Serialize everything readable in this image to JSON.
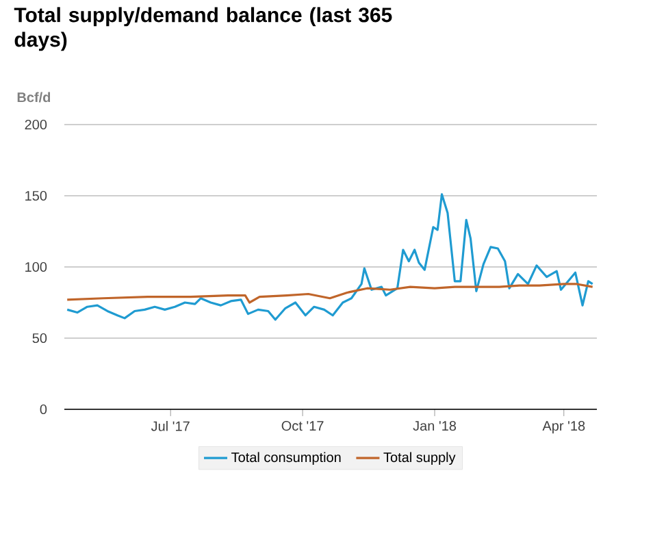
{
  "chart_data": {
    "type": "line",
    "title": "Total supply/demand balance (last 365 days)",
    "ylabel": "Bcf/d",
    "x": [
      "2017-04-20",
      "2017-04-27",
      "2017-05-04",
      "2017-05-11",
      "2017-05-18",
      "2017-05-25",
      "2017-05-30",
      "2017-06-06",
      "2017-06-13",
      "2017-06-20",
      "2017-06-27",
      "2017-07-04",
      "2017-07-11",
      "2017-07-18",
      "2017-07-22",
      "2017-07-29",
      "2017-08-05",
      "2017-08-12",
      "2017-08-19",
      "2017-08-24",
      "2017-08-31",
      "2017-09-07",
      "2017-09-12",
      "2017-09-19",
      "2017-09-26",
      "2017-10-03",
      "2017-10-09",
      "2017-10-16",
      "2017-10-22",
      "2017-10-29",
      "2017-11-04",
      "2017-11-11",
      "2017-11-13",
      "2017-11-18",
      "2017-11-25",
      "2017-11-28",
      "2017-12-06",
      "2017-12-10",
      "2017-12-14",
      "2017-12-18",
      "2017-12-21",
      "2017-12-25",
      "2017-12-31",
      "2018-01-03",
      "2018-01-06",
      "2018-01-10",
      "2018-01-15",
      "2018-01-19",
      "2018-01-23",
      "2018-01-26",
      "2018-01-30",
      "2018-02-04",
      "2018-02-09",
      "2018-02-14",
      "2018-02-19",
      "2018-02-22",
      "2018-02-28",
      "2018-03-07",
      "2018-03-13",
      "2018-03-20",
      "2018-03-27",
      "2018-03-30",
      "2018-04-09",
      "2018-04-14",
      "2018-04-18",
      "2018-04-21"
    ],
    "series": [
      {
        "name": "Total consumption",
        "color": "#1f9bd1",
        "values": [
          70,
          68,
          72,
          73,
          69,
          66,
          64,
          69,
          70,
          72,
          70,
          72,
          75,
          74,
          78,
          75,
          73,
          76,
          77,
          67,
          70,
          69,
          63,
          71,
          75,
          66,
          72,
          70,
          66,
          75,
          78,
          88,
          99,
          84,
          86,
          80,
          85,
          112,
          104,
          112,
          103,
          98,
          128,
          126,
          151,
          138,
          90,
          90,
          133,
          120,
          83,
          102,
          114,
          113,
          104,
          85,
          95,
          88,
          101,
          93,
          97,
          84,
          96,
          73,
          90,
          88
        ]
      },
      {
        "name": "Total supply",
        "color": "#c0652a",
        "x": [
          "2017-04-20",
          "2017-05-15",
          "2017-06-15",
          "2017-07-15",
          "2017-08-10",
          "2017-08-22",
          "2017-08-25",
          "2017-09-01",
          "2017-09-20",
          "2017-10-05",
          "2017-10-20",
          "2017-11-01",
          "2017-11-15",
          "2017-12-01",
          "2017-12-15",
          "2018-01-01",
          "2018-01-15",
          "2018-02-01",
          "2018-02-15",
          "2018-03-01",
          "2018-03-15",
          "2018-04-01",
          "2018-04-10",
          "2018-04-21"
        ],
        "values": [
          77,
          78,
          79,
          79,
          80,
          80,
          75,
          79,
          80,
          81,
          78,
          82,
          85,
          84,
          86,
          85,
          86,
          86,
          86,
          87,
          87,
          88,
          88,
          86
        ]
      }
    ],
    "xlim": [
      "2017-04-18",
      "2018-04-24"
    ],
    "xticks": [
      {
        "value": "2017-07-01",
        "label": "Jul '17"
      },
      {
        "value": "2017-10-01",
        "label": "Oct '17"
      },
      {
        "value": "2018-01-01",
        "label": "Jan '18"
      },
      {
        "value": "2018-04-01",
        "label": "Apr '18"
      }
    ],
    "ylim": [
      0,
      200
    ],
    "yticks": [
      0,
      50,
      100,
      150,
      200
    ],
    "grid": "y",
    "legend": "bottom",
    "marker": "none",
    "line_style": "solid"
  }
}
